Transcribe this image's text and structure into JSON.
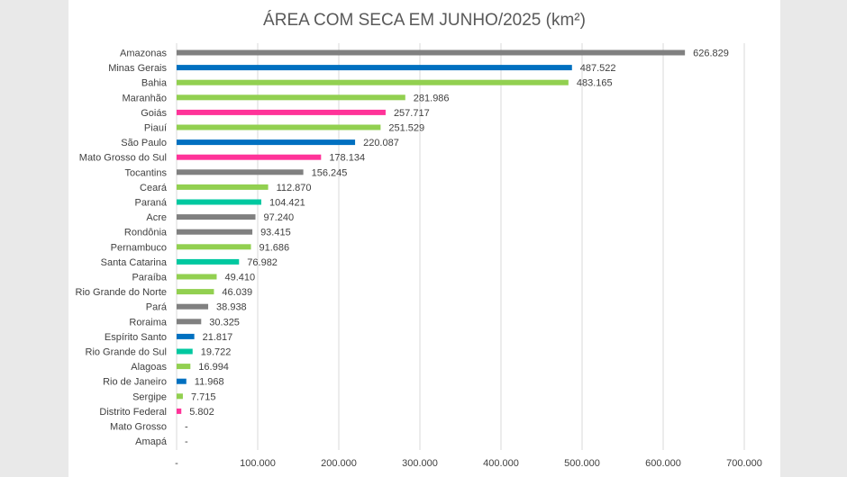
{
  "chart_data": {
    "type": "bar",
    "orientation": "horizontal",
    "title": "ÁREA COM SECA EM JUNHO/2025 (km²)",
    "xlim": [
      0,
      700000
    ],
    "x_ticks": [
      0,
      100000,
      200000,
      300000,
      400000,
      500000,
      600000,
      700000
    ],
    "x_tick_labels": [
      "-",
      "100.000",
      "200.000",
      "300.000",
      "400.000",
      "500.000",
      "600.000",
      "700.000"
    ],
    "grid": true,
    "legend": "none",
    "categories": [
      "Amazonas",
      "Minas Gerais",
      "Bahia",
      "Maranhão",
      "Goiás",
      "Piauí",
      "São Paulo",
      "Mato Grosso do Sul",
      "Tocantins",
      "Ceará",
      "Paraná",
      "Acre",
      "Rondônia",
      "Pernambuco",
      "Santa Catarina",
      "Paraíba",
      "Rio Grande do Norte",
      "Pará",
      "Roraima",
      "Espírito Santo",
      "Rio Grande do Sul",
      "Alagoas",
      "Rio de Janeiro",
      "Sergipe",
      "Distrito Federal",
      "Mato Grosso",
      "Amapá"
    ],
    "values": [
      626829,
      487522,
      483165,
      281986,
      257717,
      251529,
      220087,
      178134,
      156245,
      112870,
      104421,
      97240,
      93415,
      91686,
      76982,
      49410,
      46039,
      38938,
      30325,
      21817,
      19722,
      16994,
      11968,
      7715,
      5802,
      0,
      0
    ],
    "value_labels": [
      "626.829",
      "487.522",
      "483.165",
      "281.986",
      "257.717",
      "251.529",
      "220.087",
      "178.134",
      "156.245",
      "112.870",
      "104.421",
      "97.240",
      "93.415",
      "91.686",
      "76.982",
      "49.410",
      "46.039",
      "38.938",
      "30.325",
      "21.817",
      "19.722",
      "16.994",
      "11.968",
      "7.715",
      "5.802",
      "-",
      "-"
    ],
    "colors": [
      "#808080",
      "#0070c0",
      "#92d050",
      "#92d050",
      "#ff3399",
      "#92d050",
      "#0070c0",
      "#ff3399",
      "#808080",
      "#92d050",
      "#00c8a0",
      "#808080",
      "#808080",
      "#92d050",
      "#00c8a0",
      "#92d050",
      "#92d050",
      "#808080",
      "#808080",
      "#0070c0",
      "#00c8a0",
      "#92d050",
      "#0070c0",
      "#92d050",
      "#ff3399",
      "#808080",
      "#808080"
    ]
  }
}
